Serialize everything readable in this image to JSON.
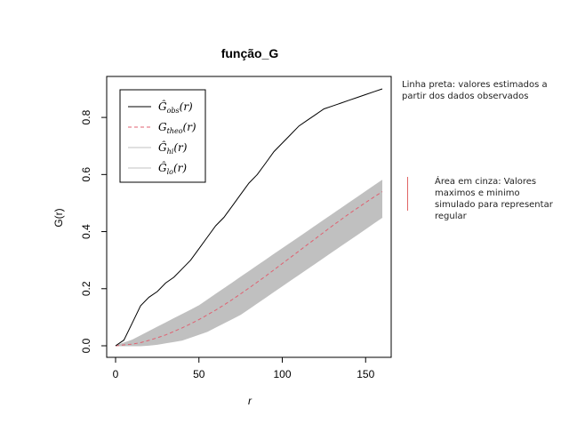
{
  "chart_data": {
    "type": "line",
    "title": "função_G",
    "xlabel": "r",
    "ylabel": "G(r)",
    "xlim": [
      0,
      160
    ],
    "ylim": [
      0,
      0.9
    ],
    "x_ticks": [
      0,
      50,
      100,
      150
    ],
    "y_ticks": [
      0.0,
      0.2,
      0.4,
      0.6,
      0.8
    ],
    "x_tick_labels": [
      "0",
      "50",
      "100",
      "150"
    ],
    "y_tick_labels": [
      "0.0",
      "0.2",
      "0.4",
      "0.6",
      "0.8"
    ],
    "grid": false,
    "legend_position": "top-left",
    "series": [
      {
        "name": "obs",
        "label_main": "Ĝ",
        "label_sub": "obs",
        "label_tail": "(r)",
        "color": "#000000",
        "style": "solid",
        "x": [
          0,
          5,
          10,
          15,
          20,
          25,
          30,
          35,
          40,
          45,
          50,
          55,
          60,
          65,
          70,
          75,
          80,
          85,
          90,
          95,
          100,
          105,
          110,
          115,
          120,
          125,
          130,
          135,
          140,
          145,
          150,
          155,
          160
        ],
        "y": [
          0,
          0.02,
          0.08,
          0.14,
          0.17,
          0.19,
          0.22,
          0.24,
          0.27,
          0.3,
          0.34,
          0.38,
          0.42,
          0.45,
          0.49,
          0.53,
          0.57,
          0.6,
          0.64,
          0.68,
          0.71,
          0.74,
          0.77,
          0.79,
          0.81,
          0.83,
          0.84,
          0.85,
          0.86,
          0.87,
          0.88,
          0.89,
          0.9
        ]
      },
      {
        "name": "theo",
        "label_main": "G",
        "label_sub": "theo",
        "label_tail": "(r)",
        "color": "#e06070",
        "style": "dashed",
        "x": [
          0,
          5,
          10,
          15,
          20,
          25,
          30,
          35,
          40,
          45,
          50,
          55,
          60,
          65,
          70,
          75,
          80,
          85,
          90,
          95,
          100,
          105,
          110,
          115,
          120,
          125,
          130,
          135,
          140,
          145,
          150,
          155,
          160
        ],
        "y": [
          0,
          0.003,
          0.006,
          0.011,
          0.019,
          0.028,
          0.038,
          0.05,
          0.063,
          0.077,
          0.092,
          0.108,
          0.125,
          0.143,
          0.162,
          0.182,
          0.202,
          0.223,
          0.244,
          0.266,
          0.288,
          0.31,
          0.332,
          0.354,
          0.376,
          0.398,
          0.42,
          0.441,
          0.462,
          0.482,
          0.502,
          0.521,
          0.54
        ]
      },
      {
        "name": "hi",
        "label_main": "Ĝ",
        "label_sub": "hi",
        "label_tail": "(r)",
        "color": "#c0c0c0",
        "style": "solid",
        "x": [
          0,
          5,
          10,
          15,
          20,
          25,
          30,
          35,
          40,
          45,
          50,
          55,
          60,
          65,
          70,
          75,
          80,
          85,
          90,
          95,
          100,
          105,
          110,
          115,
          120,
          125,
          130,
          135,
          140,
          145,
          150,
          155,
          160
        ],
        "y": [
          0,
          0.01,
          0.02,
          0.035,
          0.05,
          0.065,
          0.08,
          0.095,
          0.11,
          0.125,
          0.14,
          0.16,
          0.18,
          0.2,
          0.22,
          0.24,
          0.26,
          0.28,
          0.3,
          0.32,
          0.34,
          0.36,
          0.38,
          0.4,
          0.42,
          0.44,
          0.46,
          0.48,
          0.5,
          0.52,
          0.54,
          0.56,
          0.58
        ]
      },
      {
        "name": "lo",
        "label_main": "Ĝ",
        "label_sub": "lo",
        "label_tail": "(r)",
        "color": "#c0c0c0",
        "style": "solid",
        "x": [
          0,
          5,
          10,
          15,
          20,
          25,
          30,
          35,
          40,
          45,
          50,
          55,
          60,
          65,
          70,
          75,
          80,
          85,
          90,
          95,
          100,
          105,
          110,
          115,
          120,
          125,
          130,
          135,
          140,
          145,
          150,
          155,
          160
        ],
        "y": [
          0,
          0,
          0,
          0,
          0.002,
          0.005,
          0.01,
          0.015,
          0.02,
          0.03,
          0.04,
          0.05,
          0.065,
          0.08,
          0.095,
          0.11,
          0.13,
          0.15,
          0.17,
          0.19,
          0.21,
          0.23,
          0.25,
          0.27,
          0.29,
          0.31,
          0.33,
          0.35,
          0.37,
          0.39,
          0.41,
          0.43,
          0.45
        ]
      }
    ]
  },
  "annotations": {
    "black_line": "Linha preta: valores estimados a\npartir dos dados observados",
    "gray_area": "Área em cinza: Valores\nmaximos e minimo\nsimulado para representar\nregular"
  }
}
